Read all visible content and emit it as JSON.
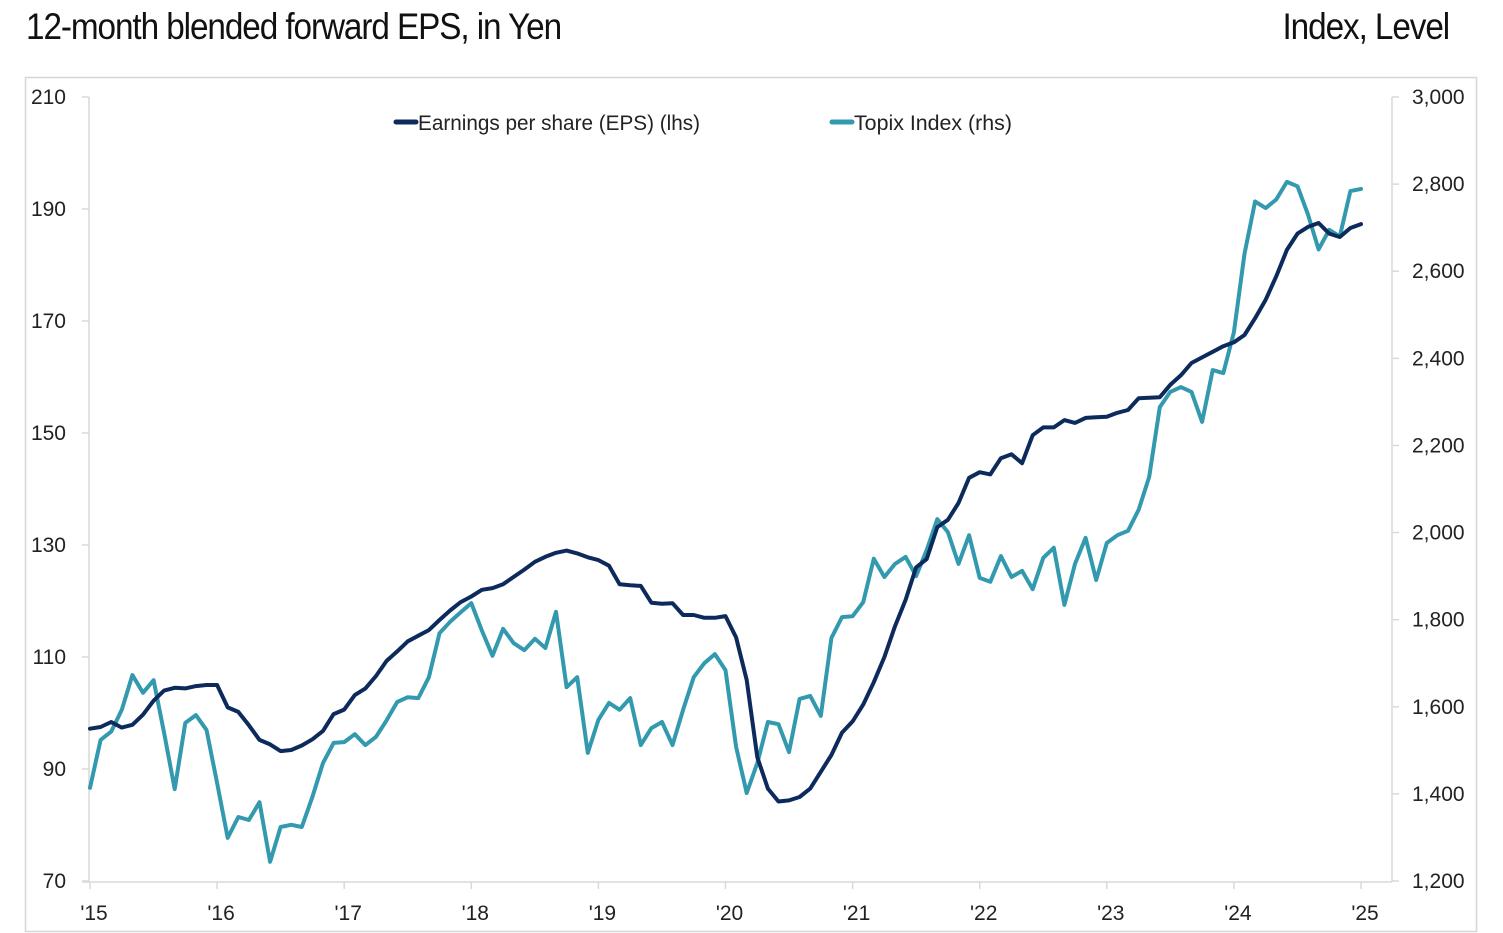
{
  "header": {
    "title_left": "12-month blended forward EPS, in Yen",
    "title_right": "Index, Level"
  },
  "chart_data": {
    "type": "line",
    "title": "12-month blended forward EPS, in Yen",
    "right_axis_title": "Index, Level",
    "x_start": "2015-01",
    "x_frequency": "monthly",
    "x_ticks": [
      "'15",
      "'16",
      "'17",
      "'18",
      "'19",
      "'20",
      "'21",
      "'22",
      "'23",
      "'24",
      "'25"
    ],
    "y_left": {
      "lim": [
        70,
        210
      ],
      "ticks": [
        "70",
        "90",
        "110",
        "130",
        "150",
        "170",
        "190",
        "210"
      ]
    },
    "y_right": {
      "lim": [
        1200,
        3000
      ],
      "ticks": [
        "1,200",
        "1,400",
        "1,600",
        "1,800",
        "2,000",
        "2,200",
        "2,400",
        "2,600",
        "2,800",
        "3,000"
      ]
    },
    "grid": false,
    "legend_position": "top-center",
    "series": [
      {
        "name": "Earnings per share (EPS) (lhs)",
        "axis": "left",
        "color": "#0c2a5b",
        "values": [
          97.2,
          97.5,
          98.4,
          97.4,
          97.9,
          99.7,
          102.2,
          104.0,
          104.5,
          104.4,
          104.8,
          105.0,
          105.0,
          101.0,
          100.2,
          97.8,
          95.2,
          94.4,
          93.2,
          93.4,
          94.2,
          95.3,
          96.8,
          99.8,
          100.6,
          103.2,
          104.4,
          106.6,
          109.3,
          111.0,
          112.8,
          113.8,
          114.8,
          116.6,
          118.3,
          119.8,
          120.8,
          122.0,
          122.3,
          123.0,
          124.3,
          125.6,
          127.0,
          127.9,
          128.6,
          129.0,
          128.5,
          127.8,
          127.3,
          126.3,
          123.0,
          122.8,
          122.7,
          119.7,
          119.5,
          119.6,
          117.5,
          117.5,
          117.0,
          117.0,
          117.3,
          113.5,
          105.9,
          92.1,
          86.5,
          84.2,
          84.4,
          85.0,
          86.5,
          89.5,
          92.5,
          96.5,
          98.5,
          101.5,
          105.5,
          110.0,
          115.5,
          120.2,
          126.0,
          127.5,
          133.2,
          134.5,
          137.5,
          142.0,
          143.0,
          142.6,
          145.5,
          146.2,
          144.6,
          149.6,
          151.0,
          151.0,
          152.3,
          151.8,
          152.7,
          152.8,
          152.9,
          153.6,
          154.1,
          156.2,
          156.3,
          156.4,
          158.6,
          160.3,
          162.5,
          163.5,
          164.5,
          165.5,
          166.2,
          167.5,
          170.5,
          173.8,
          178.0,
          182.7,
          185.6,
          186.8,
          187.5,
          185.6,
          185.0,
          186.6,
          187.3
        ]
      },
      {
        "name": "Topix Index (rhs)",
        "axis": "right",
        "color": "#3399ae",
        "values": [
          1414,
          1524,
          1543,
          1593,
          1673,
          1632,
          1661,
          1540,
          1411,
          1563,
          1581,
          1547,
          1425,
          1299,
          1347,
          1340,
          1381,
          1244,
          1324,
          1329,
          1324,
          1393,
          1471,
          1517,
          1519,
          1537,
          1512,
          1531,
          1569,
          1611,
          1622,
          1620,
          1668,
          1769,
          1795,
          1817,
          1838,
          1775,
          1717,
          1779,
          1746,
          1730,
          1756,
          1735,
          1818,
          1645,
          1668,
          1494,
          1570,
          1609,
          1593,
          1620,
          1512,
          1551,
          1565,
          1512,
          1593,
          1668,
          1700,
          1721,
          1684,
          1508,
          1402,
          1471,
          1565,
          1560,
          1496,
          1618,
          1625,
          1579,
          1758,
          1806,
          1808,
          1840,
          1940,
          1898,
          1928,
          1944,
          1900,
          1960,
          2031,
          2001,
          1928,
          1994,
          1896,
          1887,
          1946,
          1898,
          1912,
          1870,
          1942,
          1965,
          1834,
          1928,
          1988,
          1891,
          1976,
          1994,
          2004,
          2052,
          2128,
          2288,
          2323,
          2334,
          2323,
          2254,
          2373,
          2366,
          2460,
          2640,
          2760,
          2745,
          2765,
          2805,
          2795,
          2730,
          2650,
          2695,
          2680,
          2784,
          2789
        ]
      }
    ]
  }
}
